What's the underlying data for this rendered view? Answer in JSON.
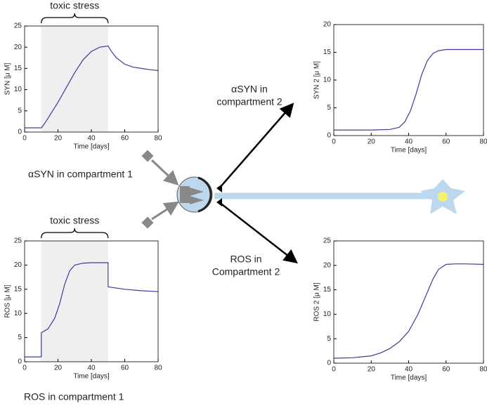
{
  "chart_data": [
    {
      "type": "line",
      "ylabel": "SYN [μ M]",
      "xlabel": "Time [days]",
      "annotation": "toxic stress",
      "shade": [
        10,
        50
      ],
      "xlim": [
        0,
        80
      ],
      "xticks": [
        0,
        20,
        40,
        60,
        80
      ],
      "ylim": [
        0,
        25
      ],
      "yticks": [
        0,
        5,
        10,
        15,
        20,
        25
      ],
      "color": "#3c3c9c",
      "x": [
        0,
        10,
        12,
        16,
        20,
        25,
        30,
        35,
        40,
        45,
        50,
        52,
        55,
        60,
        65,
        70,
        75,
        80
      ],
      "values": [
        1,
        1,
        2,
        4.5,
        7,
        10.5,
        14,
        17,
        19,
        20,
        20.3,
        19,
        17.5,
        16,
        15.3,
        15,
        14.7,
        14.5
      ]
    },
    {
      "type": "line",
      "ylabel": "SYN 2 [μ M]",
      "xlabel": "Time [days]",
      "xlim": [
        0,
        80
      ],
      "xticks": [
        0,
        20,
        40,
        60,
        80
      ],
      "ylim": [
        0,
        20
      ],
      "yticks": [
        0,
        5,
        10,
        15,
        20
      ],
      "color": "#3c3c9c",
      "x": [
        0,
        20,
        30,
        35,
        38,
        41,
        44,
        47,
        50,
        53,
        56,
        60,
        70,
        80
      ],
      "values": [
        1,
        1,
        1.1,
        1.5,
        2.5,
        4.5,
        7.5,
        11,
        13.5,
        14.8,
        15.3,
        15.5,
        15.5,
        15.5
      ]
    },
    {
      "type": "line",
      "ylabel": "ROS [μ M]",
      "xlabel": "Time [days]",
      "annotation": "toxic stress",
      "shade": [
        10,
        50
      ],
      "xlim": [
        0,
        80
      ],
      "xticks": [
        0,
        20,
        40,
        60,
        80
      ],
      "ylim": [
        0,
        25
      ],
      "yticks": [
        0,
        5,
        10,
        15,
        20,
        25
      ],
      "color": "#3c3c9c",
      "x": [
        0,
        10,
        10,
        14,
        18,
        21,
        24,
        27,
        30,
        35,
        40,
        50,
        50,
        60,
        70,
        80
      ],
      "values": [
        1,
        1,
        6,
        6.8,
        9,
        12,
        16,
        18.8,
        20,
        20.4,
        20.5,
        20.5,
        15.5,
        15,
        14.7,
        14.5
      ]
    },
    {
      "type": "line",
      "ylabel": "ROS 2 [μ M]",
      "xlabel": "Time [days]",
      "xlim": [
        0,
        80
      ],
      "xticks": [
        0,
        20,
        40,
        60,
        80
      ],
      "ylim": [
        0,
        25
      ],
      "yticks": [
        0,
        5,
        10,
        15,
        20,
        25
      ],
      "color": "#3c3c9c",
      "x": [
        0,
        10,
        20,
        25,
        30,
        35,
        40,
        45,
        50,
        53,
        56,
        60,
        65,
        70,
        80
      ],
      "values": [
        1,
        1.1,
        1.5,
        2.1,
        3,
        4.4,
        6.5,
        10,
        14.5,
        17.2,
        19.2,
        20.2,
        20.3,
        20.3,
        20.2
      ]
    }
  ],
  "diagram": {
    "asyn_c1": "αSYN   in compartment 1",
    "ros_c1": "ROS in compartment 1",
    "asyn_c2": [
      "αSYN  in",
      "compartment 2"
    ],
    "ros_c2": [
      "ROS in",
      "Compartment 2"
    ]
  }
}
